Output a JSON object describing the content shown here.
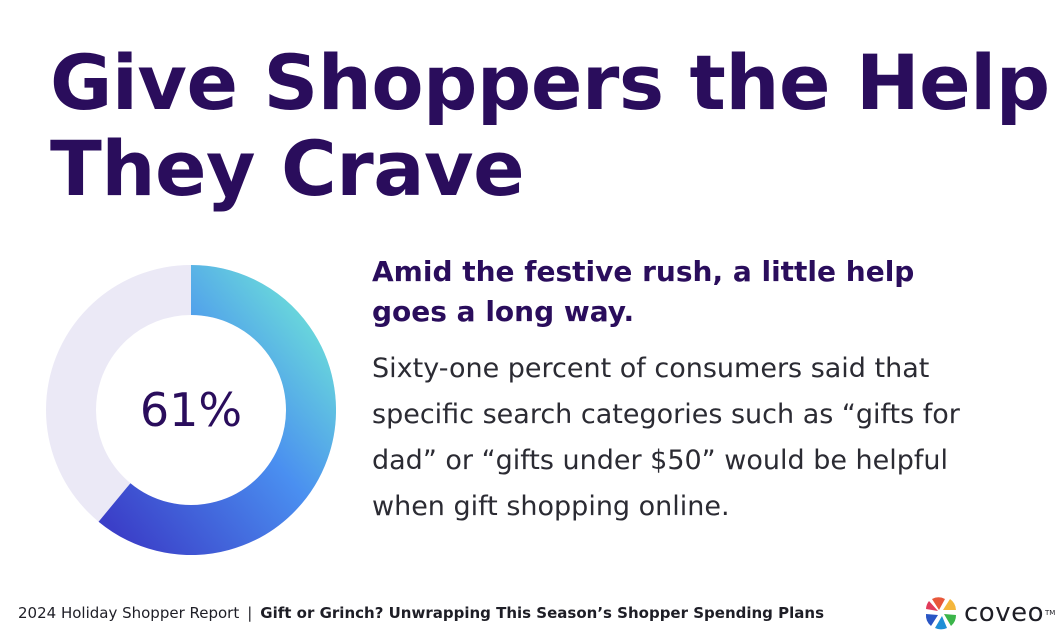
{
  "headline": {
    "line1": "Give Shoppers the Help",
    "line2": "They Crave"
  },
  "subhead": {
    "line1": "Amid the festive rush, a little help",
    "line2": "goes a long way."
  },
  "body": {
    "line1": "Sixty-one percent of consumers said that",
    "line2": "specific search categories such as “gifts for",
    "line3": "dad” or “gifts under $50” would be helpful",
    "line4": "when gift shopping online."
  },
  "footer": {
    "report": "2024 Holiday Shopper Report",
    "separator": "|",
    "subtitle": "Gift or Grinch? Unwrapping This Season’s Shopper Spending Plans"
  },
  "logo": {
    "word": "coveo",
    "tm": "TM",
    "icon": "coveo-logo-icon"
  },
  "colors": {
    "headline": "#2a0d5c",
    "donut_track": "#ebe9f6",
    "gradient_start": "#3b3fc8",
    "gradient_mid": "#4a8ff0",
    "gradient_end": "#6ee3d8"
  },
  "chart_data": {
    "type": "pie",
    "title": "",
    "center_label": "61%",
    "values": [
      61,
      39
    ],
    "categories": [
      "",
      ""
    ]
  }
}
